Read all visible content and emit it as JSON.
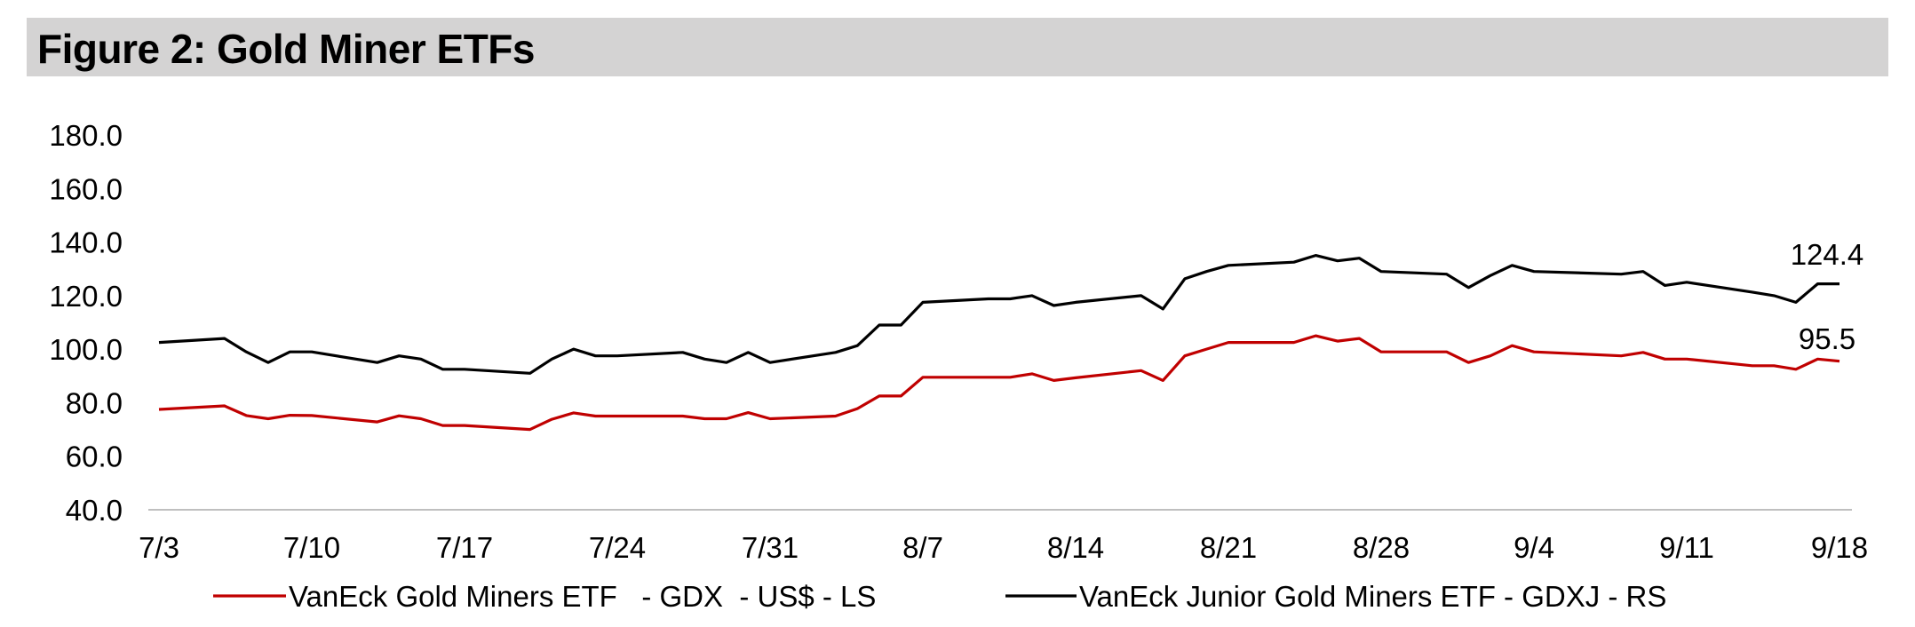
{
  "title": "Figure 2: Gold Miner ETFs",
  "chart_data": {
    "type": "line",
    "x_tick_labels": [
      "7/3",
      "7/10",
      "7/17",
      "7/24",
      "7/31",
      "8/7",
      "8/14",
      "8/21",
      "8/28",
      "9/4",
      "9/11",
      "9/18"
    ],
    "y_tick_labels": [
      "40.0",
      "60.0",
      "80.0",
      "100.0",
      "120.0",
      "140.0",
      "160.0",
      "180.0"
    ],
    "ylim": [
      40,
      180
    ],
    "x_dates": [
      "7/3",
      "7/6",
      "7/7",
      "7/8",
      "7/9",
      "7/10",
      "7/13",
      "7/14",
      "7/15",
      "7/16",
      "7/17",
      "7/20",
      "7/21",
      "7/22",
      "7/23",
      "7/24",
      "7/27",
      "7/28",
      "7/29",
      "7/30",
      "7/31",
      "8/3",
      "8/4",
      "8/5",
      "8/6",
      "8/7",
      "8/10",
      "8/11",
      "8/12",
      "8/13",
      "8/14",
      "8/17",
      "8/18",
      "8/19",
      "8/20",
      "8/21",
      "8/24",
      "8/25",
      "8/26",
      "8/27",
      "8/28",
      "8/31",
      "9/1",
      "9/2",
      "9/3",
      "9/4",
      "9/8",
      "9/9",
      "9/10",
      "9/11",
      "9/14",
      "9/15",
      "9/16",
      "9/17",
      "9/18"
    ],
    "series": [
      {
        "name": "VanEck Gold Miners ETF   - GDX  - US$ - LS",
        "color": "#c00000",
        "values": [
          77.5,
          78.8,
          75.2,
          74.0,
          75.3,
          75.2,
          72.8,
          75.1,
          74.0,
          71.5,
          71.5,
          70.0,
          73.8,
          76.2,
          75.0,
          75.0,
          75.0,
          74.0,
          74.0,
          76.3,
          74.0,
          75.0,
          77.8,
          82.5,
          82.5,
          89.5,
          89.5,
          89.5,
          90.8,
          88.3,
          89.3,
          92.0,
          88.3,
          97.5,
          100.0,
          102.5,
          102.5,
          105.0,
          103.0,
          104.0,
          99.0,
          99.0,
          95.0,
          97.5,
          101.3,
          99.0,
          97.5,
          98.8,
          96.3,
          96.3,
          93.8,
          93.8,
          92.5,
          96.3,
          95.5
        ]
      },
      {
        "name": "VanEck Junior Gold Miners ETF - GDXJ - RS",
        "color": "#000000",
        "values": [
          102.5,
          104.0,
          99.0,
          95.0,
          99.0,
          99.0,
          95.0,
          97.5,
          96.3,
          92.5,
          92.5,
          91.0,
          96.3,
          100.0,
          97.5,
          97.5,
          98.8,
          96.3,
          95.0,
          98.8,
          95.0,
          98.8,
          101.3,
          109.0,
          109.0,
          117.5,
          118.8,
          118.8,
          120.0,
          116.3,
          117.5,
          120.0,
          115.0,
          126.3,
          129.0,
          131.3,
          132.5,
          135.0,
          133.0,
          134.0,
          129.0,
          128.0,
          123.0,
          127.5,
          131.3,
          129.0,
          128.0,
          129.0,
          123.8,
          125.0,
          121.3,
          120.0,
          117.5,
          124.4,
          124.4
        ]
      }
    ],
    "end_labels": [
      "124.4",
      "95.5"
    ]
  }
}
